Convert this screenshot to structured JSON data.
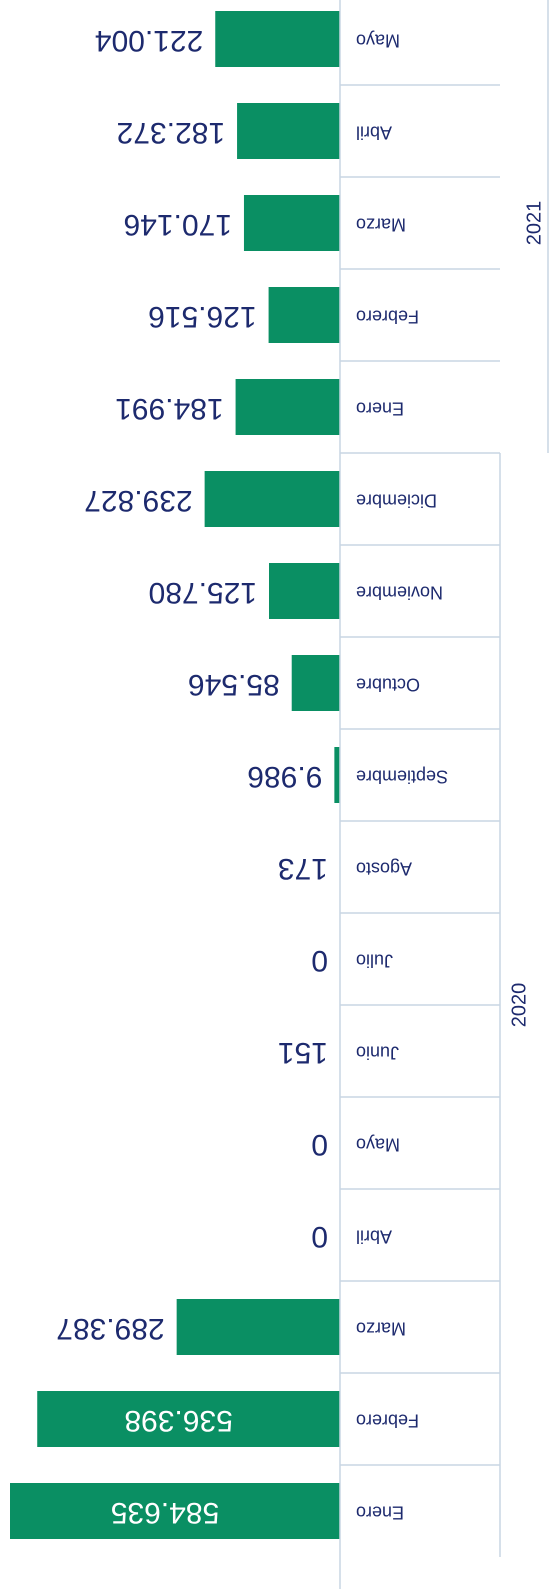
{
  "chart_data": {
    "type": "bar",
    "orientation": "horizontal",
    "color": "#0a8f63",
    "label_color": "#1d2a6e",
    "groups": [
      {
        "label": "2020",
        "categories": [
          "Enero",
          "Febrero",
          "Marzo",
          "Abril",
          "Mayo",
          "Junio",
          "Julio",
          "Agosto",
          "Septiembre",
          "Octubre",
          "Noviembre",
          "Diciembre"
        ],
        "values": [
          584635,
          536398,
          289387,
          0,
          0,
          151,
          0,
          173,
          9986,
          85546,
          125780,
          239827
        ],
        "value_labels": [
          "584.635",
          "536.398",
          "289.387",
          "0",
          "0",
          "151",
          "0",
          "173",
          "9.986",
          "85.546",
          "125.780",
          "239.827"
        ]
      },
      {
        "label": "2021",
        "categories": [
          "Enero",
          "Febrero",
          "Marzo",
          "Abril",
          "Mayo"
        ],
        "values": [
          184991,
          126516,
          170146,
          182372,
          221004
        ],
        "value_labels": [
          "184.991",
          "126.516",
          "170.146",
          "182.372",
          "221.004"
        ]
      }
    ]
  }
}
